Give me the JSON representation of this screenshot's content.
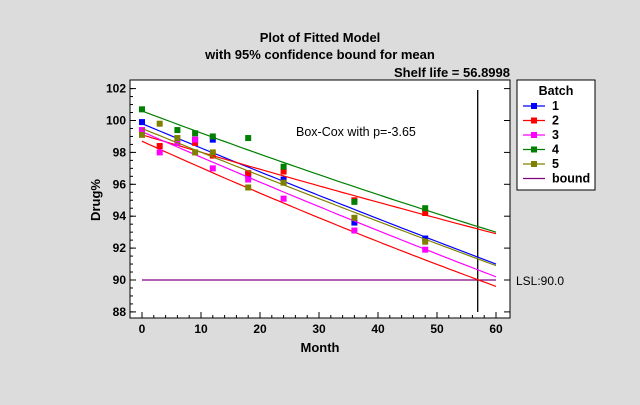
{
  "chart_data": {
    "type": "scatter",
    "title": "Plot of Fitted Model",
    "subtitle": "with 95% confidence bound for mean",
    "shelf_life_label": "Shelf life = 56.8998",
    "shelf_life": 56.8998,
    "annotation": "Box-Cox with p=-3.65",
    "xlabel": "Month",
    "ylabel": "Drug%",
    "xlim": [
      -2,
      62
    ],
    "ylim": [
      87.9,
      102.3
    ],
    "xticks": [
      0,
      10,
      20,
      30,
      40,
      50,
      60
    ],
    "yticks": [
      88,
      90,
      92,
      94,
      96,
      98,
      100,
      102
    ],
    "lsl": 90.0,
    "lsl_label": "LSL:90.0",
    "legend": {
      "title": "Batch",
      "placement": "right",
      "bound_label": "bound",
      "bound_color": "#800080"
    },
    "series": [
      {
        "name": "1",
        "color": "#0000ff",
        "points": [
          [
            0,
            99.9
          ],
          [
            9,
            98.8
          ],
          [
            12,
            98.8
          ],
          [
            18,
            96.6
          ],
          [
            24,
            96.3
          ],
          [
            36,
            93.6
          ],
          [
            48,
            92.6
          ]
        ],
        "fit": [
          [
            0,
            99.8
          ],
          [
            30,
            95.3
          ],
          [
            60,
            91.0
          ]
        ]
      },
      {
        "name": "2",
        "color": "#ff0000",
        "points": [
          [
            0,
            99.3
          ],
          [
            3,
            98.4
          ],
          [
            9,
            98.6
          ],
          [
            12,
            97.8
          ],
          [
            18,
            96.7
          ],
          [
            24,
            96.8
          ],
          [
            36,
            95.0
          ],
          [
            48,
            94.2
          ]
        ],
        "fit": [
          [
            0,
            99.1
          ],
          [
            30,
            95.9
          ],
          [
            60,
            92.9
          ]
        ]
      },
      {
        "name": "3",
        "color": "#ff00ff",
        "points": [
          [
            0,
            99.4
          ],
          [
            3,
            98.0
          ],
          [
            6,
            98.6
          ],
          [
            9,
            98.8
          ],
          [
            12,
            97.0
          ],
          [
            18,
            96.3
          ],
          [
            24,
            95.1
          ],
          [
            36,
            93.1
          ],
          [
            48,
            91.9
          ]
        ],
        "fit": [
          [
            0,
            99.3
          ],
          [
            30,
            94.6
          ],
          [
            60,
            90.2
          ]
        ]
      },
      {
        "name": "4",
        "color": "#008000",
        "points": [
          [
            0,
            100.7
          ],
          [
            6,
            99.4
          ],
          [
            9,
            99.2
          ],
          [
            12,
            99.0
          ],
          [
            18,
            98.9
          ],
          [
            24,
            97.1
          ],
          [
            36,
            94.9
          ],
          [
            48,
            94.5
          ]
        ],
        "fit": [
          [
            0,
            100.6
          ],
          [
            30,
            96.6
          ],
          [
            60,
            93.0
          ]
        ]
      },
      {
        "name": "5",
        "color": "#808000",
        "points": [
          [
            0,
            99.1
          ],
          [
            3,
            99.8
          ],
          [
            6,
            98.9
          ],
          [
            9,
            98.0
          ],
          [
            12,
            98.0
          ],
          [
            18,
            95.8
          ],
          [
            24,
            96.1
          ],
          [
            36,
            93.9
          ],
          [
            48,
            92.4
          ]
        ],
        "fit": [
          [
            0,
            99.5
          ],
          [
            30,
            95.1
          ],
          [
            60,
            90.9
          ]
        ]
      }
    ],
    "bound_lines": [
      {
        "color": "#ff0000",
        "fit": [
          [
            0,
            98.7
          ],
          [
            30,
            93.9
          ],
          [
            60,
            89.6
          ]
        ]
      }
    ]
  }
}
